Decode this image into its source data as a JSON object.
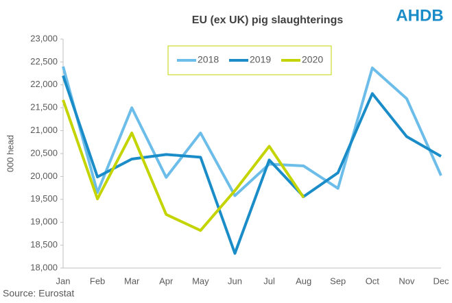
{
  "chart_data": {
    "type": "line",
    "title": "EU (ex UK) pig slaughterings",
    "logo": "AHDB",
    "source": "Source: Eurostat",
    "ylabel": "000 head",
    "categories": [
      "Jan",
      "Feb",
      "Mar",
      "Apr",
      "May",
      "Jun",
      "Jul",
      "Aug",
      "Sep",
      "Oct",
      "Nov",
      "Dec"
    ],
    "series": [
      {
        "name": "2018",
        "color": "#6cbde9",
        "values": [
          22400,
          19650,
          21500,
          19980,
          20950,
          19580,
          20270,
          20230,
          19740,
          22370,
          21700,
          20020
        ]
      },
      {
        "name": "2019",
        "color": "#1a8cc8",
        "values": [
          22200,
          19990,
          20380,
          20480,
          20420,
          18320,
          20360,
          19560,
          20080,
          21810,
          20870,
          20440
        ]
      },
      {
        "name": "2020",
        "color": "#c3d400",
        "values": [
          21670,
          19510,
          20950,
          19170,
          18820,
          19690,
          20660,
          19540,
          null,
          null,
          null,
          null
        ]
      }
    ],
    "ylim": [
      18000,
      23000
    ],
    "yticks": [
      {
        "value": 18000,
        "label": "18,000"
      },
      {
        "value": 18500,
        "label": "18,500"
      },
      {
        "value": 19000,
        "label": "19,000"
      },
      {
        "value": 19500,
        "label": "19,500"
      },
      {
        "value": 20000,
        "label": "20,000"
      },
      {
        "value": 20500,
        "label": "20,500"
      },
      {
        "value": 21000,
        "label": "21,000"
      },
      {
        "value": 21500,
        "label": "21,500"
      },
      {
        "value": 22000,
        "label": "22,000"
      },
      {
        "value": 22500,
        "label": "22,500"
      },
      {
        "value": 23000,
        "label": "23,000"
      }
    ],
    "legend": "top"
  }
}
